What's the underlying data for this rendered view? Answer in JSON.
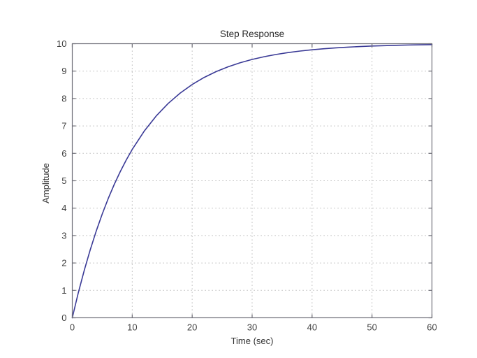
{
  "figure": {
    "background_color": "#ffffff"
  },
  "chart_data": {
    "type": "line",
    "title": "Step Response",
    "xlabel": "Time (sec)",
    "ylabel": "Amplitude",
    "xlim": [
      0,
      60
    ],
    "ylim": [
      0,
      10
    ],
    "xticks": [
      0,
      10,
      20,
      30,
      40,
      50,
      60
    ],
    "yticks": [
      0,
      1,
      2,
      3,
      4,
      5,
      6,
      7,
      8,
      9,
      10
    ],
    "grid": true,
    "grid_style": "dotted",
    "legend": "none",
    "colors": {
      "line": "#3a3a96",
      "axis": "#6f6f78",
      "grid": "#a9a9a9",
      "tick_text": "#424242",
      "title_text": "#2b2b2b",
      "plot_background": "#ffffff"
    },
    "series": [
      {
        "name": "step response",
        "color": "#3a3a96",
        "x": [
          0,
          1,
          2,
          3,
          4,
          5,
          6,
          7,
          8,
          9,
          10,
          12,
          14,
          16,
          18,
          20,
          22,
          24,
          26,
          28,
          30,
          32,
          34,
          36,
          38,
          40,
          42,
          44,
          46,
          48,
          50,
          52,
          54,
          56,
          58,
          60
        ],
        "y": [
          0,
          0.909,
          1.734,
          2.485,
          3.168,
          3.788,
          4.353,
          4.866,
          5.332,
          5.755,
          6.142,
          6.811,
          7.364,
          7.821,
          8.199,
          8.511,
          8.77,
          8.983,
          9.159,
          9.305,
          9.426,
          9.525,
          9.608,
          9.676,
          9.732,
          9.778,
          9.817,
          9.849,
          9.875,
          9.897,
          9.915,
          9.929,
          9.942,
          9.952,
          9.96,
          9.967
        ]
      }
    ]
  }
}
